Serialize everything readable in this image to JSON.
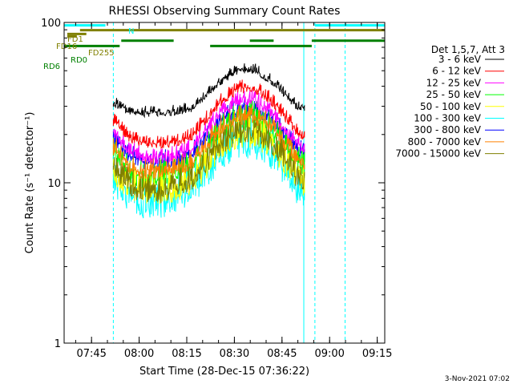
{
  "chart_data": {
    "type": "line",
    "title": "RHESSI Observing Summary Count Rates",
    "xlabel": "Start Time (28-Dec-15 07:36:22)",
    "ylabel": "Count Rate (s⁻¹ detector⁻¹)",
    "yscale": "log",
    "ylim": [
      1,
      100
    ],
    "xlim_minutes_since_0736": [
      0,
      101
    ],
    "x_ticks": [
      "07:45",
      "08:00",
      "08:15",
      "08:30",
      "08:45",
      "09:00",
      "09:15"
    ],
    "y_ticks": [
      "1",
      "10",
      "100"
    ],
    "legend_header": "Det 1,5,7, Att 3",
    "legend_position": "right",
    "footer": "3-Nov-2021 07:02",
    "flags": {
      "N": "N",
      "FD1": "FD1",
      "FD16": "FD16",
      "FD255": "FD255",
      "RD0": "RD0",
      "RD6": "RD6"
    },
    "series": [
      {
        "name": "3 - 6 keV",
        "color": "#000000",
        "values": [
          [
            15.5,
            32
          ],
          [
            20,
            29
          ],
          [
            25,
            28
          ],
          [
            30,
            28
          ],
          [
            35,
            28.5
          ],
          [
            40,
            30
          ],
          [
            45,
            36
          ],
          [
            50,
            45
          ],
          [
            55,
            52
          ],
          [
            60,
            52
          ],
          [
            65,
            45
          ],
          [
            70,
            36
          ],
          [
            73,
            31
          ],
          [
            76,
            30
          ]
        ]
      },
      {
        "name": "6 - 12 keV",
        "color": "#ff0000",
        "values": [
          [
            15.5,
            25
          ],
          [
            20,
            20
          ],
          [
            25,
            18
          ],
          [
            30,
            18
          ],
          [
            35,
            18.5
          ],
          [
            40,
            20
          ],
          [
            45,
            26
          ],
          [
            50,
            34
          ],
          [
            55,
            40
          ],
          [
            60,
            40
          ],
          [
            65,
            34
          ],
          [
            70,
            26
          ],
          [
            73,
            22
          ],
          [
            76,
            20
          ]
        ]
      },
      {
        "name": "12 - 25 keV",
        "color": "#ff00ff",
        "values": [
          [
            15.5,
            22
          ],
          [
            20,
            17
          ],
          [
            25,
            15
          ],
          [
            30,
            15
          ],
          [
            35,
            15.5
          ],
          [
            40,
            17
          ],
          [
            45,
            22
          ],
          [
            50,
            29
          ],
          [
            55,
            34
          ],
          [
            60,
            34
          ],
          [
            65,
            29
          ],
          [
            70,
            22
          ],
          [
            73,
            19
          ],
          [
            76,
            17
          ]
        ]
      },
      {
        "name": "25 - 50 keV",
        "color": "#00ff00",
        "values": [
          [
            15.5,
            17
          ],
          [
            20,
            13
          ],
          [
            25,
            11.5
          ],
          [
            30,
            11.5
          ],
          [
            35,
            12
          ],
          [
            40,
            13
          ],
          [
            45,
            17
          ],
          [
            50,
            23
          ],
          [
            55,
            27
          ],
          [
            60,
            27
          ],
          [
            65,
            23
          ],
          [
            70,
            17
          ],
          [
            73,
            14.5
          ],
          [
            76,
            13
          ]
        ]
      },
      {
        "name": "50 - 100 keV",
        "color": "#ffff00",
        "values": [
          [
            15.5,
            13
          ],
          [
            20,
            10.5
          ],
          [
            25,
            9.5
          ],
          [
            30,
            9.5
          ],
          [
            35,
            10
          ],
          [
            40,
            11
          ],
          [
            45,
            14
          ],
          [
            50,
            19
          ],
          [
            55,
            22
          ],
          [
            60,
            22
          ],
          [
            65,
            19
          ],
          [
            70,
            14
          ],
          [
            73,
            11.5
          ],
          [
            76,
            10.5
          ]
        ]
      },
      {
        "name": "100 - 300 keV",
        "color": "#00ffff",
        "values": [
          [
            15.5,
            12
          ],
          [
            20,
            9.5
          ],
          [
            25,
            8.5
          ],
          [
            30,
            8.5
          ],
          [
            35,
            9
          ],
          [
            40,
            10
          ],
          [
            45,
            13
          ],
          [
            50,
            17.5
          ],
          [
            55,
            20
          ],
          [
            60,
            20
          ],
          [
            65,
            17.5
          ],
          [
            70,
            13
          ],
          [
            73,
            10.5
          ],
          [
            76,
            9.5
          ]
        ]
      },
      {
        "name": "300 - 800 keV",
        "color": "#0000ff",
        "values": [
          [
            15.5,
            20
          ],
          [
            20,
            15.5
          ],
          [
            25,
            14
          ],
          [
            30,
            14
          ],
          [
            35,
            14.5
          ],
          [
            40,
            15.5
          ],
          [
            45,
            20
          ],
          [
            50,
            26
          ],
          [
            55,
            30
          ],
          [
            60,
            30
          ],
          [
            65,
            26
          ],
          [
            70,
            20
          ],
          [
            73,
            17
          ],
          [
            76,
            15.5
          ]
        ]
      },
      {
        "name": "800 - 7000 keV",
        "color": "#ff8000",
        "values": [
          [
            15.5,
            17.5
          ],
          [
            20,
            13.5
          ],
          [
            25,
            12.5
          ],
          [
            30,
            12.5
          ],
          [
            35,
            13
          ],
          [
            40,
            14
          ],
          [
            45,
            18
          ],
          [
            50,
            24
          ],
          [
            55,
            27.5
          ],
          [
            60,
            27.5
          ],
          [
            65,
            24
          ],
          [
            70,
            18
          ],
          [
            73,
            15.5
          ],
          [
            76,
            14
          ]
        ]
      },
      {
        "name": "7000 - 15000 keV",
        "color": "#808000",
        "values": [
          [
            15.5,
            13.5
          ],
          [
            20,
            10.5
          ],
          [
            25,
            9.5
          ],
          [
            30,
            9.5
          ],
          [
            35,
            10
          ],
          [
            40,
            11
          ],
          [
            45,
            14.5
          ],
          [
            50,
            19.5
          ],
          [
            55,
            22.5
          ],
          [
            60,
            22.5
          ],
          [
            65,
            19.5
          ],
          [
            70,
            14.5
          ],
          [
            73,
            12
          ],
          [
            76,
            11
          ]
        ]
      }
    ],
    "flag_bars": [
      {
        "label": "N",
        "color": "#00ffff",
        "segments": [
          [
            0,
            13
          ],
          [
            79,
            101
          ]
        ],
        "y": 94
      },
      {
        "label": "FD1",
        "color": "#808000",
        "segments": [
          [
            5,
            101
          ]
        ],
        "y": 84
      },
      {
        "label": "FD16",
        "color": "#808000",
        "segments": [
          [
            1,
            7
          ]
        ],
        "y": 76
      },
      {
        "label": "FD255",
        "color": "#808000",
        "segments": [
          [
            1,
            4
          ]
        ],
        "y": 71
      },
      {
        "label": "RD0",
        "color": "#008000",
        "segments": [
          [
            18,
            34.5
          ],
          [
            58.5,
            66
          ],
          [
            78,
            101
          ]
        ],
        "y": 62
      },
      {
        "label": "RD6",
        "color": "#008000",
        "segments": [
          [
            0,
            17.5
          ],
          [
            46,
            78
          ]
        ],
        "y": 51
      }
    ],
    "vlines": [
      {
        "x": 15.5,
        "color": "#00ffff",
        "style": "dash"
      },
      {
        "x": 75.5,
        "color": "#00ffff",
        "style": "solid"
      },
      {
        "x": 79,
        "color": "#00ffff",
        "style": "dash"
      },
      {
        "x": 88.5,
        "color": "#00ffff",
        "style": "dash"
      }
    ]
  }
}
